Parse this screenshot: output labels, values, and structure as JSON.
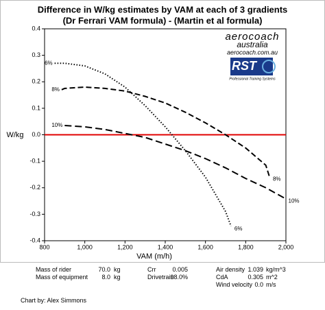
{
  "chart_data": {
    "type": "line",
    "title": "Difference in W/kg estimates by VAM at each of 3 gradients",
    "subtitle": "(Dr Ferrari VAM formula) - (Martin et al formula)",
    "x_label": "VAM (m/h)",
    "y_label": "W/kg",
    "xlim": [
      800,
      2000
    ],
    "xticks": [
      800,
      {
        "value": 1000,
        "label": "1,000"
      },
      {
        "value": 1200,
        "label": "1,200"
      },
      {
        "value": 1400,
        "label": "1,400"
      },
      {
        "value": 1600,
        "label": "1,600"
      },
      {
        "value": 1800,
        "label": "1,800"
      },
      {
        "value": 2000,
        "label": "2,000"
      }
    ],
    "ylim": [
      -0.4,
      0.4
    ],
    "yticks": [
      0.4,
      0.3,
      0.2,
      0.1,
      {
        "value": 0,
        "label": "0.0"
      },
      -0.1,
      -0.2,
      -0.3,
      -0.4
    ],
    "hline": {
      "value": 0,
      "color": "#e00000"
    },
    "series": [
      {
        "name": "6%",
        "color": "#000000",
        "dash": "1.5 2.5",
        "x": [
          850,
          900,
          1000,
          1100,
          1200,
          1300,
          1400,
          1500,
          1600,
          1700,
          1727
        ],
        "values": [
          0.27,
          0.27,
          0.26,
          0.23,
          0.18,
          0.11,
          0.03,
          -0.06,
          -0.16,
          -0.29,
          -0.345
        ]
      },
      {
        "name": "8%",
        "color": "#000000",
        "dash": "8 4",
        "x": [
          885,
          900,
          1000,
          1100,
          1200,
          1300,
          1400,
          1500,
          1600,
          1700,
          1800,
          1900,
          1918
        ],
        "values": [
          0.17,
          0.175,
          0.18,
          0.175,
          0.165,
          0.145,
          0.12,
          0.085,
          0.045,
          0.0,
          -0.05,
          -0.115,
          -0.158
        ]
      },
      {
        "name": "10%",
        "color": "#000000",
        "dash": "10 5",
        "x": [
          900,
          1000,
          1100,
          1200,
          1300,
          1400,
          1500,
          1600,
          1700,
          1800,
          1900,
          1995
        ],
        "values": [
          0.035,
          0.03,
          0.02,
          0.005,
          -0.01,
          -0.035,
          -0.06,
          -0.09,
          -0.125,
          -0.165,
          -0.2,
          -0.24
        ]
      }
    ]
  },
  "logo": {
    "name": "aerocoach",
    "region": "australia",
    "url": "aerocoach.com.au",
    "badge": "RST",
    "badge_caption": "Professional Training Systems"
  },
  "parameters": [
    {
      "label": "Mass of rider",
      "value": "70.0",
      "unit": "kg"
    },
    {
      "label": "Mass of equipment",
      "value": "8.0",
      "unit": "kg"
    },
    {
      "label": "Crr",
      "value": "0.005"
    },
    {
      "label": "Drivetrain",
      "value": "98.0%"
    },
    {
      "label": "Air density",
      "value": "1.039",
      "unit": "kg/m^3"
    },
    {
      "label": "CdA",
      "value": "0.305",
      "unit": "m^2"
    },
    {
      "label": "Wind velocity",
      "value": "0.0",
      "unit": "m/s"
    }
  ],
  "credit": "Chart by: Alex Simmons"
}
